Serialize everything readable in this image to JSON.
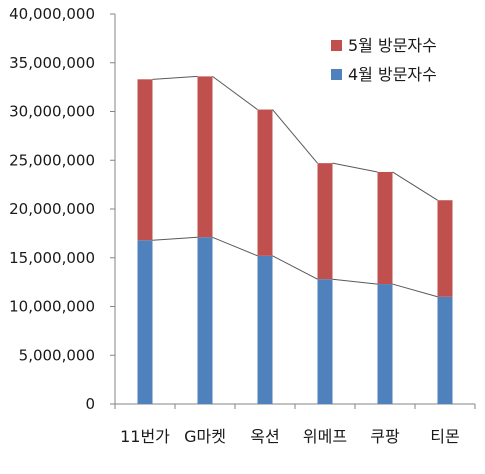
{
  "chart_data": {
    "type": "bar",
    "stacked": true,
    "categories": [
      "11번가",
      "G마켓",
      "옥션",
      "위메프",
      "쿠팡",
      "티몬"
    ],
    "series": [
      {
        "name": "4월 방문자수",
        "values": [
          16800000,
          17100000,
          15200000,
          12800000,
          12300000,
          11000000
        ],
        "color": "#4f81bd"
      },
      {
        "name": "5월 방문자수",
        "values": [
          16500000,
          16500000,
          15000000,
          11900000,
          11500000,
          9900000
        ],
        "color": "#c0504d"
      }
    ],
    "ylim": [
      0,
      40000000
    ],
    "yticks": [
      0,
      5000000,
      10000000,
      15000000,
      20000000,
      25000000,
      30000000,
      35000000,
      40000000
    ],
    "ytick_labels": [
      "0",
      "5,000,000",
      "10,000,000",
      "15,000,000",
      "20,000,000",
      "25,000,000",
      "30,000,000",
      "35,000,000",
      "40,000,000"
    ],
    "connector_lines": true,
    "grid": false,
    "legend_position": "top-right",
    "title": "",
    "xlabel": "",
    "ylabel": ""
  }
}
